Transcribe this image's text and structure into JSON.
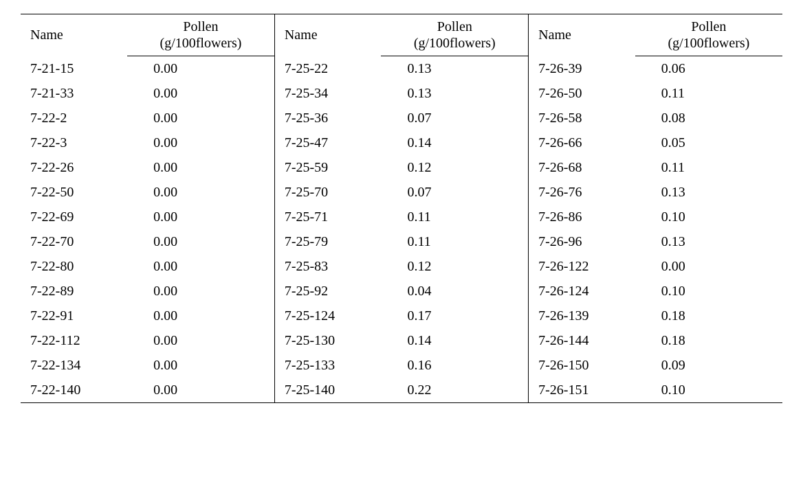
{
  "table": {
    "font_family": "Times New Roman / Batang serif",
    "text_color": "#000000",
    "background_color": "#ffffff",
    "rule_color": "#000000",
    "header_fontsize_pt": 15,
    "body_fontsize_pt": 15,
    "column_groups": 3,
    "header_labels": {
      "name": "Name",
      "pollen_line1": "Pollen",
      "pollen_line2": "(g/100flowers)"
    },
    "groups": [
      {
        "rows": [
          {
            "name": "7-21-15",
            "pollen": "0.00"
          },
          {
            "name": "7-21-33",
            "pollen": "0.00"
          },
          {
            "name": "7-22-2",
            "pollen": "0.00"
          },
          {
            "name": "7-22-3",
            "pollen": "0.00"
          },
          {
            "name": "7-22-26",
            "pollen": "0.00"
          },
          {
            "name": "7-22-50",
            "pollen": "0.00"
          },
          {
            "name": "7-22-69",
            "pollen": "0.00"
          },
          {
            "name": "7-22-70",
            "pollen": "0.00"
          },
          {
            "name": "7-22-80",
            "pollen": "0.00"
          },
          {
            "name": "7-22-89",
            "pollen": "0.00"
          },
          {
            "name": "7-22-91",
            "pollen": "0.00"
          },
          {
            "name": "7-22-112",
            "pollen": "0.00"
          },
          {
            "name": "7-22-134",
            "pollen": "0.00"
          },
          {
            "name": "7-22-140",
            "pollen": "0.00"
          }
        ]
      },
      {
        "rows": [
          {
            "name": "7-25-22",
            "pollen": "0.13"
          },
          {
            "name": "7-25-34",
            "pollen": "0.13"
          },
          {
            "name": "7-25-36",
            "pollen": "0.07"
          },
          {
            "name": "7-25-47",
            "pollen": "0.14"
          },
          {
            "name": "7-25-59",
            "pollen": "0.12"
          },
          {
            "name": "7-25-70",
            "pollen": "0.07"
          },
          {
            "name": "7-25-71",
            "pollen": "0.11"
          },
          {
            "name": "7-25-79",
            "pollen": "0.11"
          },
          {
            "name": "7-25-83",
            "pollen": "0.12"
          },
          {
            "name": "7-25-92",
            "pollen": "0.04"
          },
          {
            "name": "7-25-124",
            "pollen": "0.17"
          },
          {
            "name": "7-25-130",
            "pollen": "0.14"
          },
          {
            "name": "7-25-133",
            "pollen": "0.16"
          },
          {
            "name": "7-25-140",
            "pollen": "0.22"
          }
        ]
      },
      {
        "rows": [
          {
            "name": "7-26-39",
            "pollen": "0.06"
          },
          {
            "name": "7-26-50",
            "pollen": "0.11"
          },
          {
            "name": "7-26-58",
            "pollen": "0.08"
          },
          {
            "name": "7-26-66",
            "pollen": "0.05"
          },
          {
            "name": "7-26-68",
            "pollen": "0.11"
          },
          {
            "name": "7-26-76",
            "pollen": "0.13"
          },
          {
            "name": "7-26-86",
            "pollen": "0.10"
          },
          {
            "name": "7-26-96",
            "pollen": "0.13"
          },
          {
            "name": "7-26-122",
            "pollen": "0.00"
          },
          {
            "name": "7-26-124",
            "pollen": "0.10"
          },
          {
            "name": "7-26-139",
            "pollen": "0.18"
          },
          {
            "name": "7-26-144",
            "pollen": "0.18"
          },
          {
            "name": "7-26-150",
            "pollen": "0.09"
          },
          {
            "name": "7-26-151",
            "pollen": "0.10"
          }
        ]
      }
    ]
  }
}
